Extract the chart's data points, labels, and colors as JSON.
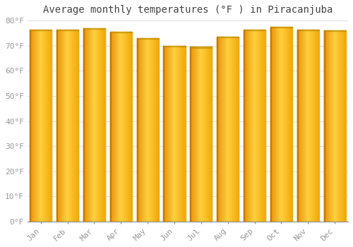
{
  "months": [
    "Jan",
    "Feb",
    "Mar",
    "Apr",
    "May",
    "Jun",
    "Jul",
    "Aug",
    "Sep",
    "Oct",
    "Nov",
    "Dec"
  ],
  "values": [
    76.5,
    76.5,
    77.0,
    75.5,
    73.0,
    70.0,
    69.5,
    73.5,
    76.5,
    77.5,
    76.5,
    76.0
  ],
  "bar_color_dark": "#E8920A",
  "bar_color_mid": "#FFA800",
  "bar_color_light": "#FFD040",
  "bar_edge_color": "#CC8800",
  "background_color": "#FFFFFF",
  "grid_color": "#DDDDDD",
  "title": "Average monthly temperatures (°F ) in Piracanjuba",
  "ylim": [
    0,
    80
  ],
  "yticks": [
    0,
    10,
    20,
    30,
    40,
    50,
    60,
    70,
    80
  ],
  "ytick_labels": [
    "0°F",
    "10°F",
    "20°F",
    "30°F",
    "40°F",
    "50°F",
    "60°F",
    "70°F",
    "80°F"
  ],
  "title_fontsize": 10,
  "tick_fontsize": 8,
  "tick_color": "#999999",
  "font_family": "monospace",
  "bar_width": 0.82
}
